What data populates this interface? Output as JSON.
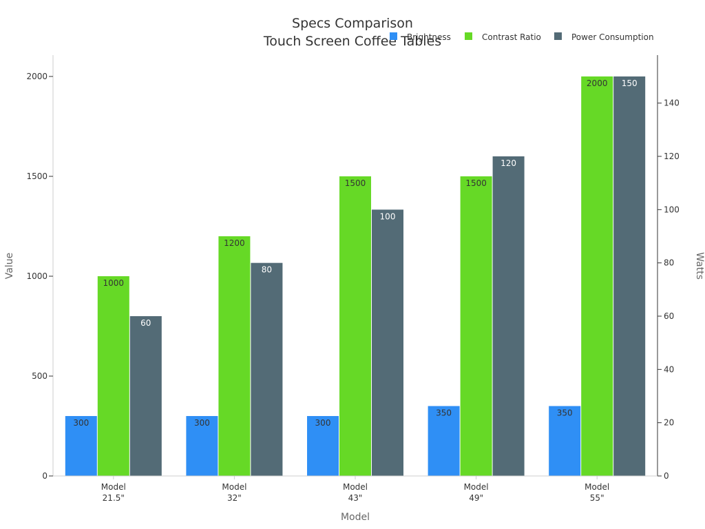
{
  "chart_data": {
    "type": "bar",
    "title": [
      "Specs Comparison",
      "Touch Screen Coffee Tables"
    ],
    "xlabel": "Model",
    "ylabel": "Value",
    "y2label": "Watts",
    "categories": [
      [
        "Model",
        "21.5\""
      ],
      [
        "Model",
        "32\""
      ],
      [
        "Model",
        "43\""
      ],
      [
        "Model",
        "49\""
      ],
      [
        "Model",
        "55\""
      ]
    ],
    "ylim": [
      0,
      2000
    ],
    "y2lim": [
      0,
      150
    ],
    "yticks": [
      0,
      500,
      1000,
      1500,
      2000
    ],
    "y2ticks": [
      0,
      20,
      40,
      60,
      80,
      100,
      120,
      140
    ],
    "legend_position": "top-right",
    "grid": false,
    "series": [
      {
        "name": "Brightness",
        "values": [
          300,
          300,
          300,
          350,
          350
        ],
        "axis": "left",
        "color": "#2f8ff5",
        "label_color": "#333333"
      },
      {
        "name": "Contrast Ratio",
        "values": [
          1000,
          1200,
          1500,
          1500,
          2000
        ],
        "axis": "left",
        "color": "#66d926",
        "label_color": "#333333"
      },
      {
        "name": "Power Consumption",
        "values": [
          60,
          80,
          100,
          120,
          150
        ],
        "axis": "right",
        "color": "#536b76",
        "label_color": "#ffffff"
      }
    ]
  }
}
